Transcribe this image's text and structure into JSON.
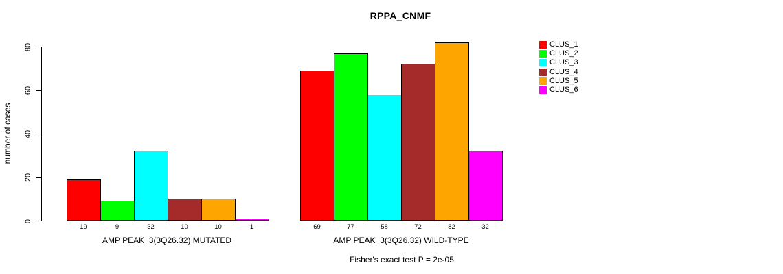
{
  "chart_data": {
    "type": "bar",
    "title": "RPPA_CNMF",
    "xlabel": "",
    "ylabel": "number of cases",
    "ylim": [
      0,
      80
    ],
    "yticks": [
      0,
      20,
      40,
      60,
      80
    ],
    "grid": false,
    "legend_position": "right",
    "categories": [
      "AMP PEAK  3(3Q26.32) MUTATED",
      "AMP PEAK  3(3Q26.32) WILD-TYPE"
    ],
    "series": [
      {
        "name": "CLUS_1",
        "color": "#FF0000",
        "values": [
          19,
          69
        ]
      },
      {
        "name": "CLUS_2",
        "color": "#00FF00",
        "values": [
          9,
          77
        ]
      },
      {
        "name": "CLUS_3",
        "color": "#00FFFF",
        "values": [
          32,
          58
        ]
      },
      {
        "name": "CLUS_4",
        "color": "#A52A2A",
        "values": [
          10,
          72
        ]
      },
      {
        "name": "CLUS_5",
        "color": "#FFA500",
        "values": [
          10,
          82
        ]
      },
      {
        "name": "CLUS_6",
        "color": "#FF00FF",
        "values": [
          1,
          32
        ]
      }
    ],
    "bar_value_labels": [
      [
        19,
        9,
        32,
        10,
        10,
        1
      ],
      [
        69,
        77,
        58,
        72,
        82,
        32
      ]
    ],
    "annotation": "Fisher's exact test P = 2e-05"
  }
}
